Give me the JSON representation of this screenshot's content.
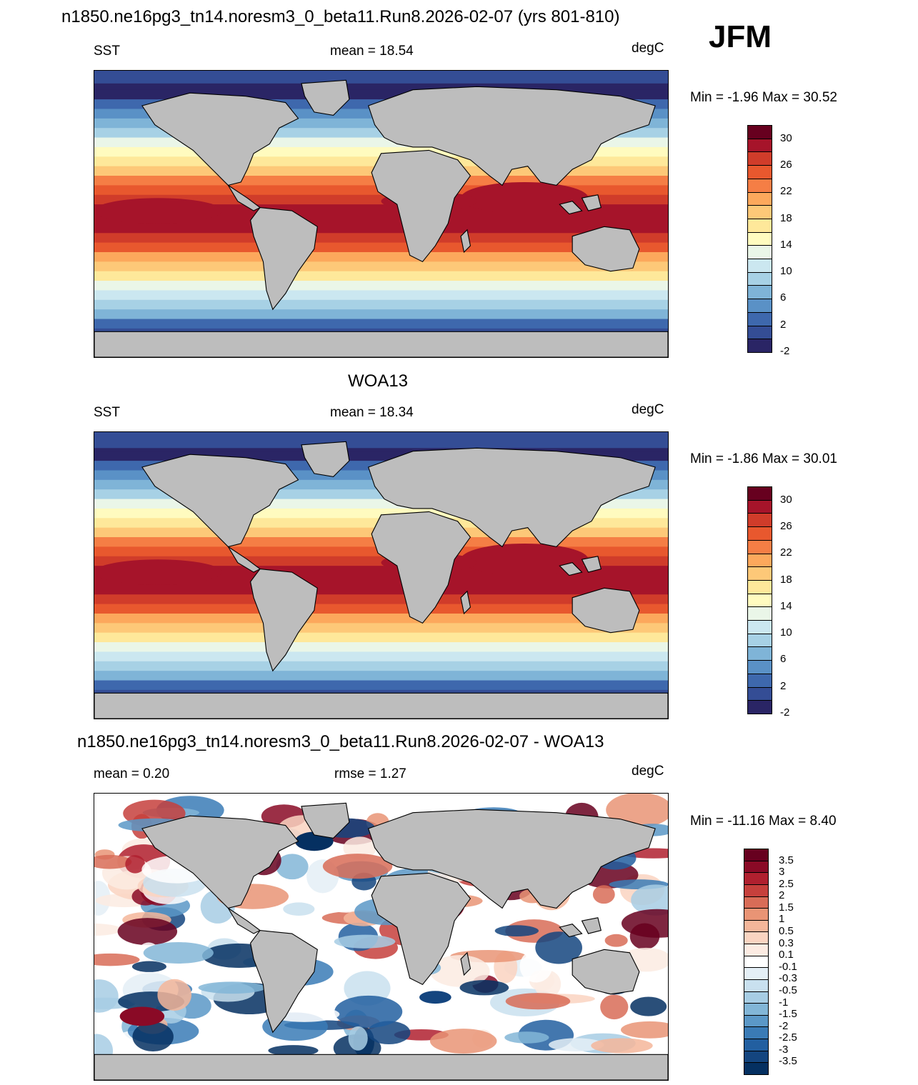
{
  "page": {
    "main_title": "n1850.ne16pg3_tn14.noresm3_0_beta11.Run8.2026-02-07 (yrs 801-810)",
    "season": "JFM"
  },
  "panels": [
    {
      "title": "",
      "left": "SST",
      "center": "mean =  18.54",
      "right": "degC",
      "minmax": "Min =  -1.96 Max =  30.52",
      "kind": "sst",
      "colorbar_labels": [
        "30",
        "26",
        "22",
        "18",
        "14",
        "10",
        "6",
        "2",
        "-2"
      ]
    },
    {
      "title": "WOA13",
      "left": "SST",
      "center": "mean =  18.34",
      "right": "degC",
      "minmax": "Min =  -1.86 Max =  30.01",
      "kind": "sst",
      "colorbar_labels": [
        "30",
        "26",
        "22",
        "18",
        "14",
        "10",
        "6",
        "2",
        "-2"
      ]
    },
    {
      "title": "n1850.ne16pg3_tn14.noresm3_0_beta11.Run8.2026-02-07 - WOA13",
      "left": "mean =   0.20",
      "center": "rmse =   1.27",
      "right": "degC",
      "minmax": "Min = -11.16 Max =   8.40",
      "kind": "diff",
      "colorbar_labels": [
        "3.5",
        "3",
        "2.5",
        "2",
        "1.5",
        "1",
        "0.5",
        "0.3",
        "0.1",
        "-0.1",
        "-0.3",
        "-0.5",
        "-1",
        "-1.5",
        "-2",
        "-2.5",
        "-3",
        "-3.5"
      ]
    }
  ],
  "colors": {
    "land": "#bdbdbd",
    "sst_scale": [
      "#67001f",
      "#a6142a",
      "#d03c2a",
      "#e8582e",
      "#f57e45",
      "#fca85c",
      "#fdc878",
      "#fee89a",
      "#fffbbf",
      "#eaf6e8",
      "#cbe7f0",
      "#a7d1e5",
      "#7fb4d7",
      "#5a91c6",
      "#3e68ad",
      "#344d95",
      "#2a2565"
    ],
    "diff_scale": [
      "#67001f",
      "#8a0a26",
      "#b0202f",
      "#c6403c",
      "#d86c57",
      "#e99475",
      "#f4b69a",
      "#fad4c1",
      "#fcebe2",
      "#ffffff",
      "#e4eff6",
      "#c9e0ef",
      "#a7cde4",
      "#82b6d7",
      "#5b98c7",
      "#3a7bb6",
      "#225fa0",
      "#14457f",
      "#053061"
    ]
  }
}
